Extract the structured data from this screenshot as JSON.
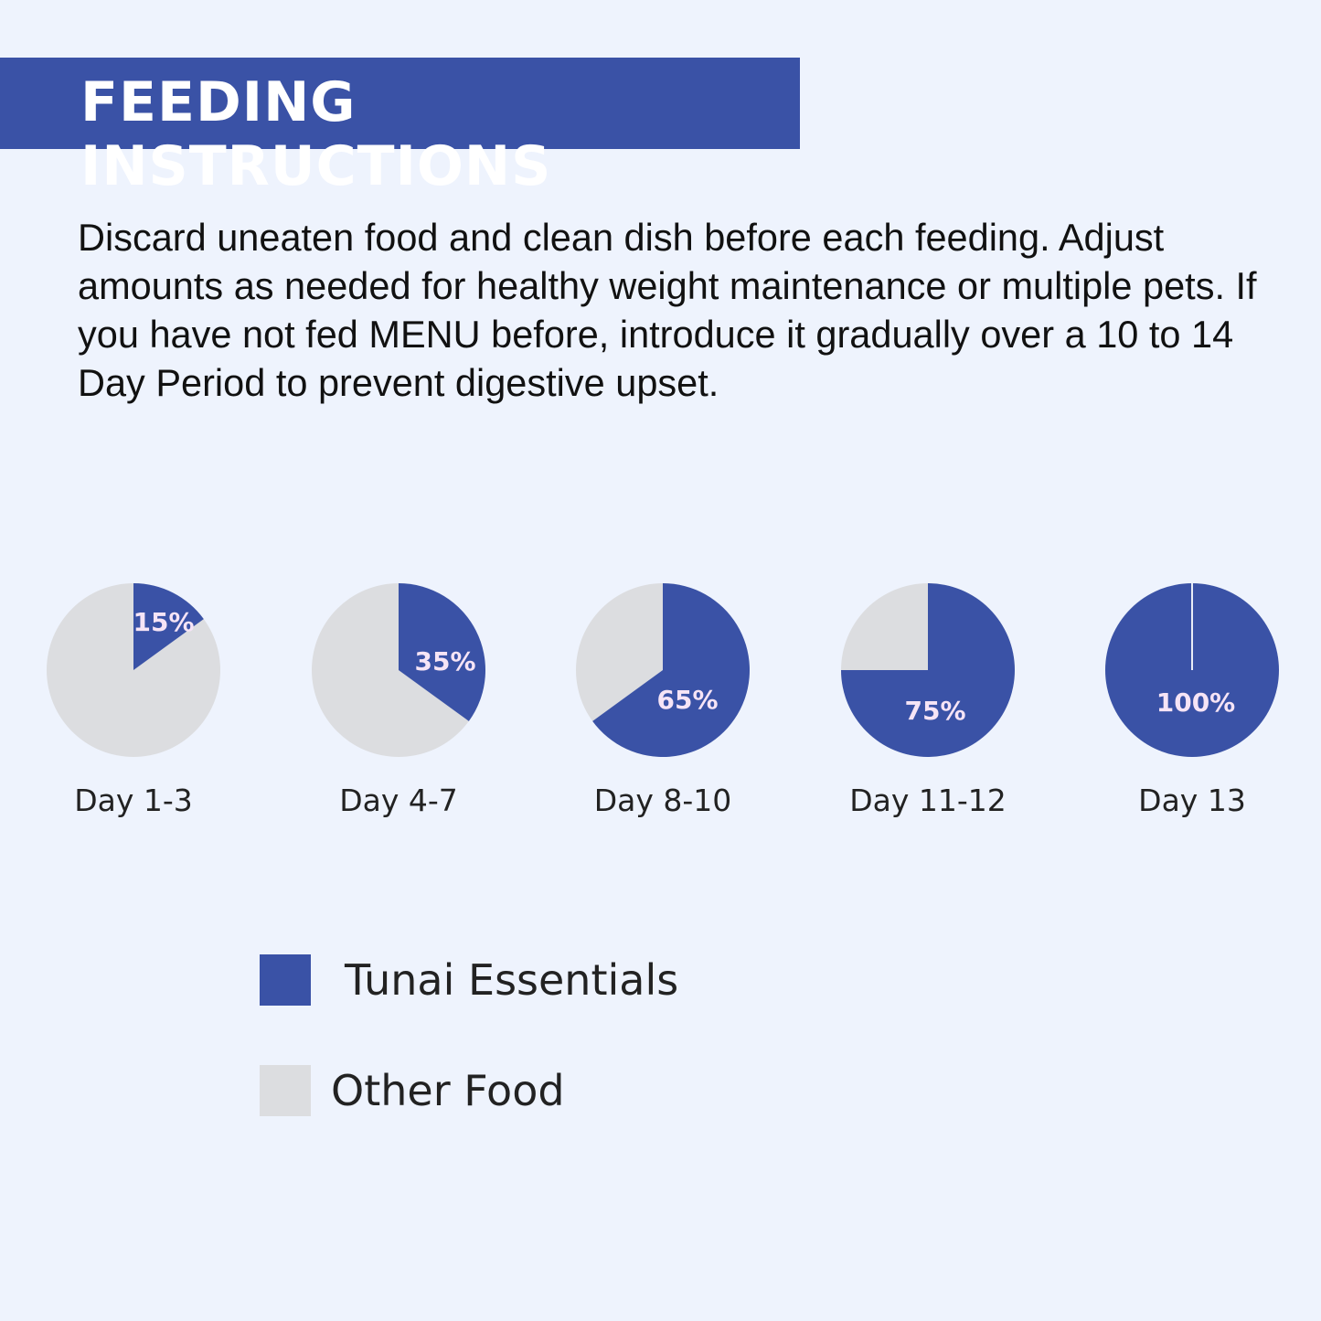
{
  "header": {
    "title": "FEEDING INSTRUCTIONS"
  },
  "description": "Discard uneaten food and clean dish before each feeding. Adjust amounts as needed for healthy weight maintenance or multiple pets. If you have not fed MENU before, introduce it gradually over a 10 to 14 Day Period to prevent digestive upset.",
  "colors": {
    "primary": "#3a52a6",
    "secondary": "#dcdde0",
    "background": "#eef3fd",
    "label": "#f6e4f6"
  },
  "chart_data": {
    "type": "pie",
    "categories": [
      "Day 1-3",
      "Day 4-7",
      "Day 8-10",
      "Day 11-12",
      "Day 13"
    ],
    "series": [
      {
        "name": "Tunai Essentials",
        "values": [
          15,
          35,
          65,
          75,
          100
        ]
      },
      {
        "name": "Other Food",
        "values": [
          85,
          65,
          35,
          25,
          0
        ]
      }
    ],
    "data_labels": [
      "15%",
      "35%",
      "65%",
      "75%",
      "100%"
    ],
    "legend_placement": "bottom-left"
  },
  "legend": [
    {
      "label": "Tunai Essentials",
      "color": "#3a52a6"
    },
    {
      "label": "Other Food",
      "color": "#dcdde0"
    }
  ]
}
